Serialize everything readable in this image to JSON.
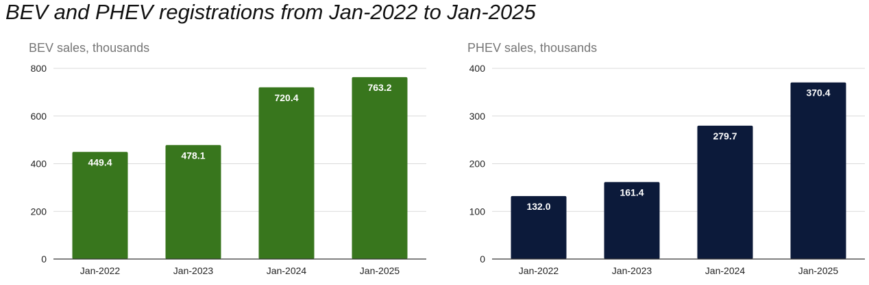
{
  "page": {
    "title": "BEV and PHEV registrations from Jan-2022 to Jan-2025"
  },
  "chart_data": [
    {
      "type": "bar",
      "title": "BEV sales, thousands",
      "xlabel": "",
      "ylabel": "",
      "categories": [
        "Jan-2022",
        "Jan-2023",
        "Jan-2024",
        "Jan-2025"
      ],
      "values": [
        449.4,
        478.1,
        720.4,
        763.2
      ],
      "value_labels": [
        "449.4",
        "478.1",
        "720.4",
        "763.2"
      ],
      "ylim": [
        0,
        800
      ],
      "yticks": [
        0,
        200,
        400,
        600,
        800
      ],
      "ytick_labels": [
        "0",
        "200",
        "400",
        "600",
        "800"
      ],
      "grid": true,
      "legend": "none",
      "color": "#38761d"
    },
    {
      "type": "bar",
      "title": "PHEV sales, thousands",
      "xlabel": "",
      "ylabel": "",
      "categories": [
        "Jan-2022",
        "Jan-2023",
        "Jan-2024",
        "Jan-2025"
      ],
      "values": [
        132.0,
        161.4,
        279.7,
        370.4
      ],
      "value_labels": [
        "132.0",
        "161.4",
        "279.7",
        "370.4"
      ],
      "ylim": [
        0,
        400
      ],
      "yticks": [
        0,
        100,
        200,
        300,
        400
      ],
      "ytick_labels": [
        "0",
        "100",
        "200",
        "300",
        "400"
      ],
      "grid": true,
      "legend": "none",
      "color": "#0c1a3a"
    }
  ]
}
